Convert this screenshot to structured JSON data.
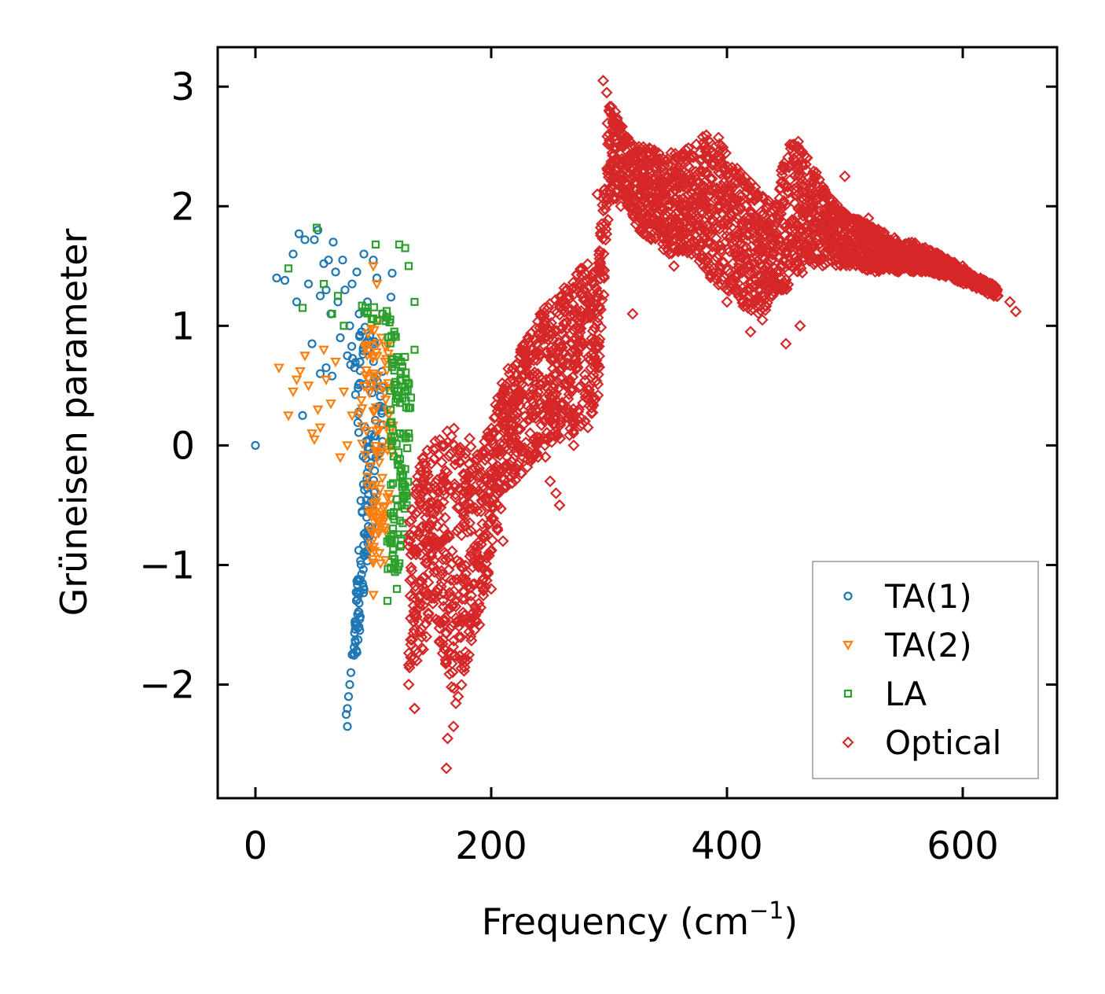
{
  "chart_data": {
    "type": "scatter",
    "title": "",
    "xlabel": "Frequency (cm",
    "xlabel_sup": "−1",
    "xlabel_close": ")",
    "ylabel": "Grüneisen parameter",
    "xlim": [
      -32,
      680
    ],
    "ylim": [
      -2.95,
      3.33
    ],
    "x_ticks": [
      0,
      200,
      400,
      600
    ],
    "x_tick_labels": [
      "0",
      "200",
      "400",
      "600"
    ],
    "y_ticks": [
      -2,
      -1,
      0,
      1,
      2,
      3
    ],
    "y_tick_labels": [
      "−2",
      "−1",
      "0",
      "1",
      "2",
      "3"
    ],
    "legend_position": "lower-right",
    "series": [
      {
        "name": "TA(1)",
        "marker": "circle",
        "color": "#1f77b4",
        "points": [
          [
            0,
            0
          ],
          [
            18,
            1.4
          ],
          [
            25,
            1.38
          ],
          [
            32,
            1.6
          ],
          [
            35,
            1.2
          ],
          [
            37,
            1.77
          ],
          [
            40,
            0.25
          ],
          [
            42,
            1.72
          ],
          [
            45,
            1.35
          ],
          [
            48,
            0.85
          ],
          [
            50,
            1.72
          ],
          [
            53,
            1.8
          ],
          [
            55,
            1.25
          ],
          [
            58,
            1.52
          ],
          [
            60,
            1.3
          ],
          [
            62,
            1.55
          ],
          [
            64,
            1.1
          ],
          [
            66,
            1.7
          ],
          [
            68,
            1.45
          ],
          [
            70,
            1.2
          ],
          [
            72,
            0.9
          ],
          [
            74,
            1.55
          ],
          [
            76,
            1.3
          ],
          [
            78,
            0.75
          ],
          [
            80,
            1.0
          ],
          [
            82,
            1.35
          ],
          [
            84,
            0.65
          ],
          [
            86,
            1.45
          ],
          [
            88,
            1.1
          ],
          [
            90,
            0.95
          ],
          [
            92,
            1.6
          ],
          [
            95,
            1.2
          ],
          [
            100,
            1.55
          ],
          [
            103,
            1.4
          ],
          [
            108,
            1.1
          ],
          [
            116,
            1.44
          ],
          [
            115,
            1.24
          ],
          [
            60,
            0.65
          ],
          [
            65,
            0.58
          ],
          [
            55,
            0.6
          ],
          [
            78,
            -2.35
          ],
          [
            77,
            -2.25
          ],
          [
            78,
            -2.2
          ],
          [
            79,
            -2.1
          ],
          [
            80,
            -2.0
          ],
          [
            81,
            -1.9
          ],
          [
            82,
            -1.75
          ]
        ],
        "band": [
          {
            "y": -1.8,
            "xmin": 81,
            "xmax": 86
          },
          {
            "y": -1.4,
            "xmin": 84,
            "xmax": 90
          },
          {
            "y": -1.0,
            "xmin": 87,
            "xmax": 95
          },
          {
            "y": -0.6,
            "xmin": 89,
            "xmax": 100
          },
          {
            "y": -0.2,
            "xmin": 90,
            "xmax": 106
          },
          {
            "y": 0.2,
            "xmin": 86,
            "xmax": 110
          },
          {
            "y": 0.6,
            "xmin": 80,
            "xmax": 108
          },
          {
            "y": 1.0,
            "xmin": 78,
            "xmax": 100
          }
        ]
      },
      {
        "name": "TA(2)",
        "marker": "triangle-down",
        "color": "#ff7f0e",
        "points": [
          [
            20,
            0.65
          ],
          [
            28,
            0.25
          ],
          [
            32,
            0.45
          ],
          [
            35,
            0.55
          ],
          [
            38,
            0.62
          ],
          [
            42,
            0.75
          ],
          [
            45,
            0.5
          ],
          [
            48,
            0.1
          ],
          [
            50,
            0.05
          ],
          [
            53,
            0.3
          ],
          [
            55,
            0.15
          ],
          [
            58,
            0.8
          ],
          [
            60,
            0.55
          ],
          [
            64,
            0.35
          ],
          [
            68,
            0.7
          ],
          [
            72,
            -0.1
          ],
          [
            75,
            0.45
          ],
          [
            78,
            0.0
          ],
          [
            82,
            0.25
          ],
          [
            100,
            1.5
          ],
          [
            103,
            1.35
          ],
          [
            104,
            1.05
          ],
          [
            107,
            0.9
          ],
          [
            100,
            -1.25
          ],
          [
            105,
            -0.9
          ],
          [
            102,
            -0.75
          ],
          [
            110,
            0.7
          ],
          [
            112,
            0.3
          ],
          [
            115,
            -0.45
          ],
          [
            118,
            0.9
          ]
        ],
        "band": [
          {
            "y": -1.0,
            "xmin": 98,
            "xmax": 110
          },
          {
            "y": -0.6,
            "xmin": 96,
            "xmax": 114
          },
          {
            "y": -0.2,
            "xmin": 92,
            "xmax": 116
          },
          {
            "y": 0.2,
            "xmin": 88,
            "xmax": 118
          },
          {
            "y": 0.6,
            "xmin": 90,
            "xmax": 118
          },
          {
            "y": 1.0,
            "xmin": 96,
            "xmax": 112
          }
        ]
      },
      {
        "name": "LA",
        "marker": "square",
        "color": "#2ca02c",
        "points": [
          [
            28,
            1.48
          ],
          [
            40,
            1.15
          ],
          [
            52,
            1.82
          ],
          [
            58,
            1.35
          ],
          [
            65,
            1.1
          ],
          [
            70,
            1.25
          ],
          [
            75,
            1.0
          ],
          [
            102,
            1.68
          ],
          [
            122,
            1.68
          ],
          [
            127,
            1.65
          ],
          [
            130,
            1.5
          ],
          [
            135,
            1.2
          ],
          [
            135,
            0.8
          ],
          [
            118,
            -0.95
          ],
          [
            112,
            -1.3
          ],
          [
            120,
            -1.2
          ],
          [
            125,
            -0.65
          ],
          [
            128,
            -0.4
          ],
          [
            130,
            0.1
          ],
          [
            132,
            0.4
          ]
        ],
        "band": [
          {
            "y": -1.1,
            "xmin": 110,
            "xmax": 122
          },
          {
            "y": -0.7,
            "xmin": 112,
            "xmax": 127
          },
          {
            "y": -0.3,
            "xmin": 115,
            "xmax": 130
          },
          {
            "y": 0.1,
            "xmin": 114,
            "xmax": 132
          },
          {
            "y": 0.5,
            "xmin": 114,
            "xmax": 132
          },
          {
            "y": 0.9,
            "xmin": 112,
            "xmax": 125
          },
          {
            "y": 1.2,
            "xmin": 85,
            "xmax": 110
          }
        ]
      },
      {
        "name": "Optical",
        "marker": "diamond",
        "color": "#d62728",
        "points": [
          [
            162,
            -2.7
          ],
          [
            163,
            -2.45
          ],
          [
            168,
            -2.35
          ],
          [
            135,
            -2.2
          ],
          [
            130,
            -2.0
          ],
          [
            145,
            -1.6
          ],
          [
            172,
            -2.1
          ],
          [
            175,
            -1.8
          ],
          [
            190,
            -1.5
          ],
          [
            200,
            -1.2
          ],
          [
            210,
            -0.8
          ],
          [
            255,
            -0.4
          ],
          [
            258,
            -0.5
          ],
          [
            250,
            -0.3
          ],
          [
            270,
            0.0
          ],
          [
            282,
            0.15
          ],
          [
            320,
            1.1
          ],
          [
            310,
            2.0
          ],
          [
            290,
            2.1
          ],
          [
            300,
            2.8
          ],
          [
            355,
            1.5
          ],
          [
            370,
            1.6
          ],
          [
            400,
            1.2
          ],
          [
            420,
            0.95
          ],
          [
            430,
            1.05
          ],
          [
            450,
            0.85
          ],
          [
            462,
            1.0
          ],
          [
            480,
            1.55
          ],
          [
            500,
            2.25
          ],
          [
            520,
            1.9
          ],
          [
            560,
            1.5
          ],
          [
            600,
            1.5
          ],
          [
            625,
            1.35
          ],
          [
            640,
            1.2
          ],
          [
            645,
            1.12
          ],
          [
            295,
            3.05
          ],
          [
            298,
            2.95
          ],
          [
            305,
            2.7
          ]
        ],
        "band": [
          {
            "x": 130,
            "ymin": -1.9,
            "ymax": -0.5
          },
          {
            "x": 140,
            "ymin": -1.8,
            "ymax": -0.1
          },
          {
            "x": 150,
            "ymin": -1.4,
            "ymax": 0.1
          },
          {
            "x": 160,
            "ymin": -1.8,
            "ymax": 0.1
          },
          {
            "x": 170,
            "ymin": -2.2,
            "ymax": 0.2
          },
          {
            "x": 180,
            "ymin": -1.8,
            "ymax": 0.1
          },
          {
            "x": 190,
            "ymin": -1.4,
            "ymax": -0.1
          },
          {
            "x": 200,
            "ymin": -1.0,
            "ymax": 0.3
          },
          {
            "x": 210,
            "ymin": -0.5,
            "ymax": 0.6
          },
          {
            "x": 220,
            "ymin": -0.3,
            "ymax": 0.7
          },
          {
            "x": 230,
            "ymin": -0.2,
            "ymax": 0.9
          },
          {
            "x": 240,
            "ymin": -0.1,
            "ymax": 1.1
          },
          {
            "x": 250,
            "ymin": -0.1,
            "ymax": 1.2
          },
          {
            "x": 260,
            "ymin": 0.0,
            "ymax": 1.3
          },
          {
            "x": 270,
            "ymin": 0.1,
            "ymax": 1.45
          },
          {
            "x": 280,
            "ymin": 0.2,
            "ymax": 1.55
          },
          {
            "x": 290,
            "ymin": 0.3,
            "ymax": 1.4
          },
          {
            "x": 300,
            "ymin": 2.0,
            "ymax": 2.9
          },
          {
            "x": 310,
            "ymin": 2.1,
            "ymax": 2.7
          },
          {
            "x": 320,
            "ymin": 1.9,
            "ymax": 2.5
          },
          {
            "x": 330,
            "ymin": 1.7,
            "ymax": 2.5
          },
          {
            "x": 340,
            "ymin": 1.7,
            "ymax": 2.5
          },
          {
            "x": 350,
            "ymin": 1.6,
            "ymax": 2.45
          },
          {
            "x": 360,
            "ymin": 1.6,
            "ymax": 2.45
          },
          {
            "x": 370,
            "ymin": 1.6,
            "ymax": 2.5
          },
          {
            "x": 380,
            "ymin": 1.5,
            "ymax": 2.6
          },
          {
            "x": 390,
            "ymin": 1.3,
            "ymax": 2.65
          },
          {
            "x": 400,
            "ymin": 1.3,
            "ymax": 2.5
          },
          {
            "x": 410,
            "ymin": 1.2,
            "ymax": 2.3
          },
          {
            "x": 420,
            "ymin": 1.1,
            "ymax": 2.2
          },
          {
            "x": 430,
            "ymin": 1.1,
            "ymax": 2.1
          },
          {
            "x": 440,
            "ymin": 1.2,
            "ymax": 2.0
          },
          {
            "x": 450,
            "ymin": 1.3,
            "ymax": 2.5
          },
          {
            "x": 460,
            "ymin": 1.4,
            "ymax": 2.55
          },
          {
            "x": 470,
            "ymin": 1.5,
            "ymax": 2.4
          },
          {
            "x": 480,
            "ymin": 1.5,
            "ymax": 2.2
          },
          {
            "x": 490,
            "ymin": 1.5,
            "ymax": 2.05
          },
          {
            "x": 500,
            "ymin": 1.5,
            "ymax": 1.95
          },
          {
            "x": 510,
            "ymin": 1.5,
            "ymax": 1.9
          },
          {
            "x": 520,
            "ymin": 1.45,
            "ymax": 1.85
          },
          {
            "x": 530,
            "ymin": 1.45,
            "ymax": 1.8
          },
          {
            "x": 540,
            "ymin": 1.45,
            "ymax": 1.75
          },
          {
            "x": 550,
            "ymin": 1.45,
            "ymax": 1.7
          },
          {
            "x": 560,
            "ymin": 1.45,
            "ymax": 1.7
          },
          {
            "x": 570,
            "ymin": 1.45,
            "ymax": 1.65
          },
          {
            "x": 580,
            "ymin": 1.42,
            "ymax": 1.6
          },
          {
            "x": 590,
            "ymin": 1.4,
            "ymax": 1.55
          },
          {
            "x": 600,
            "ymin": 1.35,
            "ymax": 1.48
          },
          {
            "x": 615,
            "ymin": 1.3,
            "ymax": 1.4
          },
          {
            "x": 630,
            "ymin": 1.22,
            "ymax": 1.32
          }
        ]
      }
    ]
  }
}
